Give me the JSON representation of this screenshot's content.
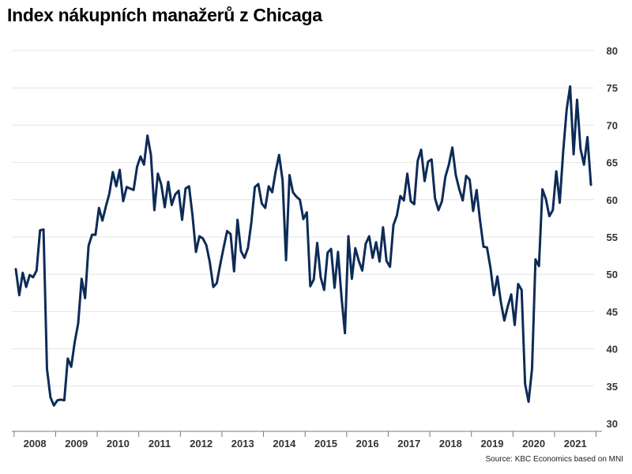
{
  "chart_data": {
    "type": "line",
    "title": "Index nákupních manažerů z Chicaga",
    "source": "Source: KBC Economics based on MNI",
    "xlabel": "",
    "ylabel": "",
    "ylim": [
      30,
      80
    ],
    "yticks": [
      30,
      35,
      40,
      45,
      50,
      55,
      60,
      65,
      70,
      75,
      80
    ],
    "year_labels": [
      "2008",
      "2009",
      "2010",
      "2011",
      "2012",
      "2013",
      "2014",
      "2015",
      "2016",
      "2017",
      "2018",
      "2019",
      "2020",
      "2021"
    ],
    "first_month": "2008-01",
    "grid": "horizontal",
    "line_color": "#0d2b57",
    "series": [
      {
        "values": [
          50.7,
          47.2,
          50.2,
          48.3,
          49.9,
          49.6,
          50.5,
          55.9,
          56.0,
          37.3,
          33.5,
          32.4,
          33.1,
          33.2,
          33.1,
          38.7,
          37.6,
          40.9,
          43.4,
          49.4,
          46.8,
          53.8,
          55.3,
          55.3,
          58.9,
          57.2,
          59.1,
          60.8,
          63.7,
          61.8,
          64.0,
          59.8,
          61.7,
          61.5,
          61.3,
          64.4,
          65.8,
          64.7,
          68.6,
          66.0,
          58.6,
          63.5,
          62.0,
          59.0,
          62.4,
          59.3,
          60.7,
          61.2,
          57.3,
          61.5,
          61.8,
          57.9,
          53.0,
          55.1,
          54.8,
          53.9,
          51.6,
          48.3,
          48.8,
          51.3,
          53.6,
          55.8,
          55.4,
          50.4,
          57.3,
          53.1,
          52.2,
          53.5,
          57.0,
          61.7,
          62.1,
          59.5,
          58.9,
          61.8,
          61.0,
          63.8,
          66.0,
          62.6,
          51.9,
          63.3,
          61.0,
          60.4,
          60.0,
          57.4,
          58.3,
          48.4,
          49.3,
          54.2,
          49.6,
          47.9,
          52.9,
          53.4,
          48.2,
          53.0,
          47.0,
          42.1,
          55.1,
          49.4,
          53.5,
          51.8,
          50.5,
          54.1,
          55.1,
          52.2,
          54.3,
          51.7,
          56.3,
          51.8,
          51.0,
          56.6,
          57.9,
          60.5,
          59.9,
          63.5,
          59.8,
          59.4,
          65.2,
          66.7,
          62.5,
          65.1,
          65.4,
          60.2,
          58.6,
          59.8,
          63.1,
          64.7,
          67.0,
          63.3,
          61.4,
          59.9,
          63.2,
          62.7,
          58.5,
          61.3,
          57.2,
          53.7,
          53.6,
          50.9,
          47.2,
          49.7,
          46.3,
          43.8,
          45.7,
          47.3,
          43.2,
          48.7,
          47.9,
          35.3,
          32.9,
          37.3,
          52.0,
          51.1,
          61.4,
          60.1,
          57.8,
          58.6,
          63.8,
          59.6,
          66.5,
          72.1,
          75.2,
          66.1,
          73.4,
          66.8,
          64.7,
          68.4,
          62.0
        ]
      }
    ]
  }
}
